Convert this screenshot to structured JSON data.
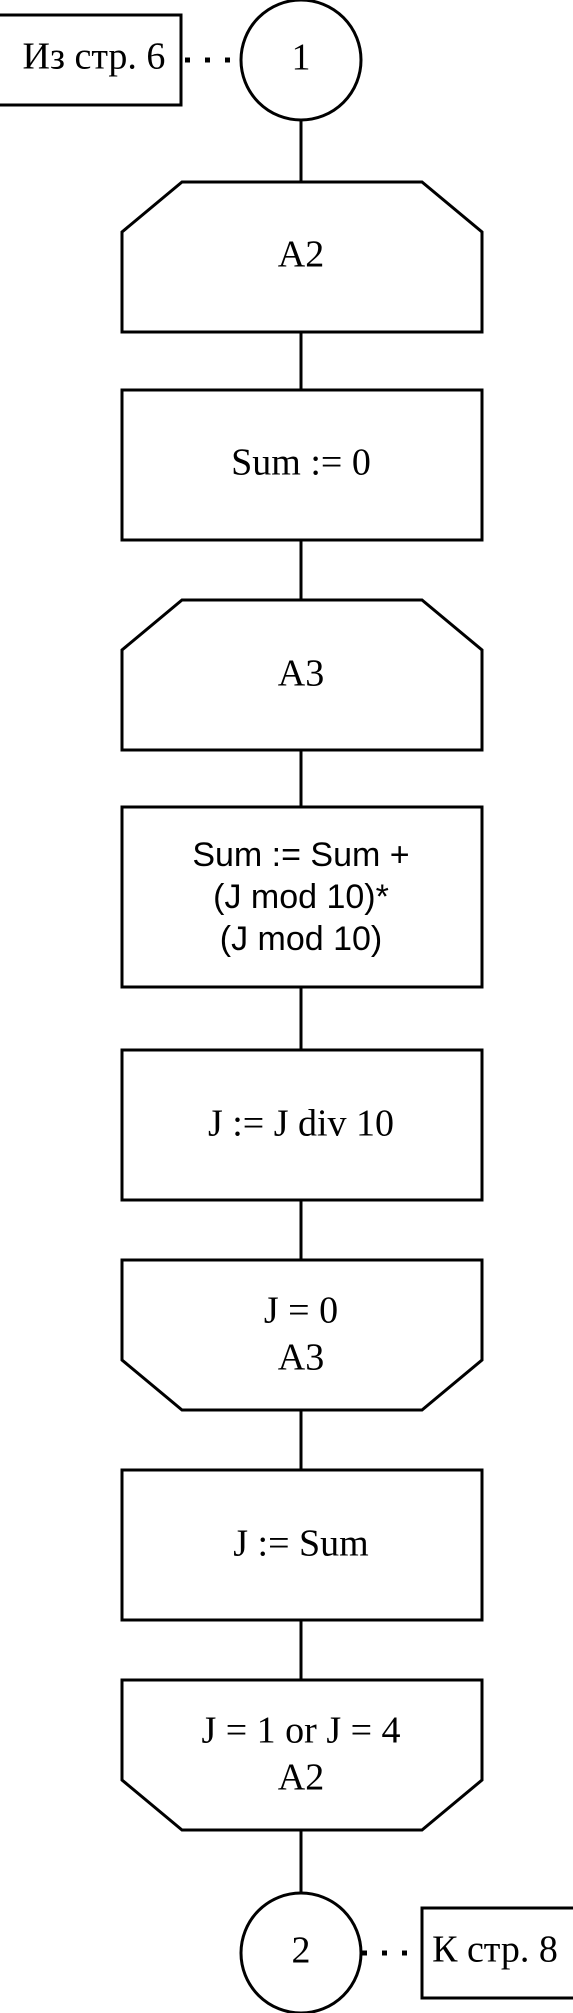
{
  "diagram": {
    "offpage_in": {
      "label": "Из стр. 6"
    },
    "connector_top": {
      "label": "1"
    },
    "loop_start_a2": {
      "label": "A2"
    },
    "assign_sum_zero": {
      "label": "Sum := 0"
    },
    "loop_start_a3": {
      "label": "A3"
    },
    "assign_sum_add": {
      "lines": [
        "Sum := Sum +",
        "(J mod 10)*",
        "(J mod 10)"
      ]
    },
    "assign_j_div": {
      "label": "J := J div 10"
    },
    "loop_end_a3": {
      "lines": [
        "J = 0",
        "A3"
      ]
    },
    "assign_j_sum": {
      "label": "J := Sum"
    },
    "loop_end_a2": {
      "lines": [
        "J = 1 or J = 4",
        "A2"
      ]
    },
    "connector_bottom": {
      "label": "2"
    },
    "offpage_out": {
      "label": "К стр. 8"
    }
  }
}
